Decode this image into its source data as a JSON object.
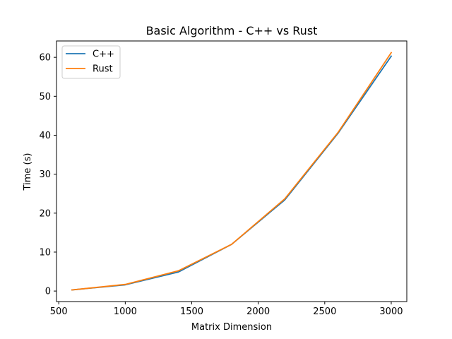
{
  "chart_data": {
    "type": "line",
    "title": "Basic Algorithm - C++ vs Rust",
    "xlabel": "Matrix Dimension",
    "ylabel": "Time (s)",
    "xlim": [
      483,
      3117
    ],
    "ylim": [
      -2.7,
      64.2
    ],
    "x_ticks": [
      500,
      1000,
      1500,
      2000,
      2500,
      3000
    ],
    "y_ticks": [
      0,
      10,
      20,
      30,
      40,
      50,
      60
    ],
    "grid": false,
    "legend_position": "top-left",
    "x": [
      600,
      1000,
      1400,
      1800,
      2200,
      2600,
      3000
    ],
    "series": [
      {
        "name": "C++",
        "color": "#1f77b4",
        "values": [
          0.3,
          1.6,
          4.9,
          12.0,
          23.4,
          40.5,
          60.3
        ]
      },
      {
        "name": "Rust",
        "color": "#ff7f0e",
        "values": [
          0.3,
          1.7,
          5.2,
          12.0,
          23.7,
          40.7,
          61.2
        ]
      }
    ]
  }
}
